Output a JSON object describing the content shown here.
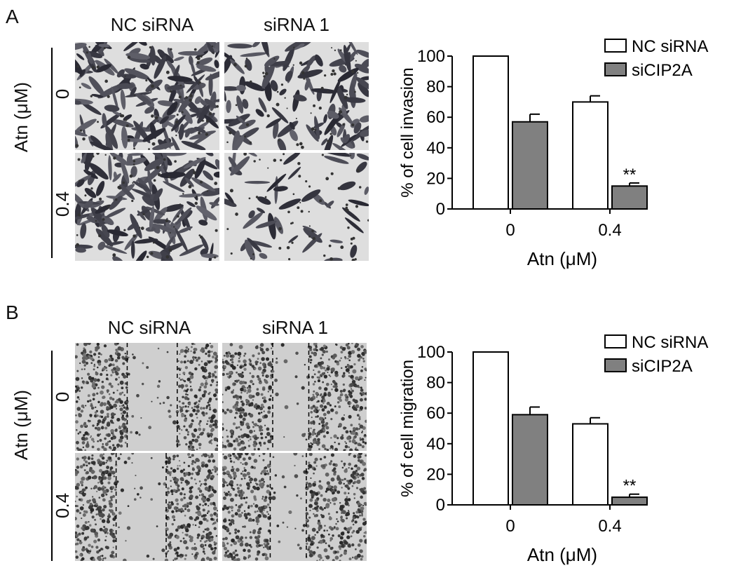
{
  "panels": [
    {
      "letter": "A",
      "column_titles": [
        "NC siRNA",
        "siRNA 1"
      ],
      "row_labels": [
        "0",
        "0.4"
      ],
      "side_label": "Atn (μM)"
    },
    {
      "letter": "B",
      "column_titles": [
        "NC siRNA",
        "siRNA 1"
      ],
      "row_labels": [
        "0",
        "0.4"
      ],
      "side_label": "Atn (μM)"
    }
  ],
  "chart_data": [
    {
      "type": "bar",
      "categories": [
        "0",
        "0.4"
      ],
      "series": [
        {
          "name": "NC siRNA",
          "values": [
            100,
            70
          ],
          "errors": [
            0,
            4
          ],
          "color": "#ffffff"
        },
        {
          "name": "siCIP2A",
          "values": [
            57,
            15
          ],
          "errors": [
            5,
            2
          ],
          "color": "#808080"
        }
      ],
      "annotations": [
        {
          "category": "0.4",
          "series": "siCIP2A",
          "text": "**"
        }
      ],
      "ylabel": "% of cell invasion",
      "xlabel": "Atn (μM)",
      "ylim": [
        0,
        100
      ],
      "yticks": [
        0,
        20,
        40,
        60,
        80,
        100
      ],
      "legend": "top-right"
    },
    {
      "type": "bar",
      "categories": [
        "0",
        "0.4"
      ],
      "series": [
        {
          "name": "NC siRNA",
          "values": [
            100,
            53
          ],
          "errors": [
            0,
            4
          ],
          "color": "#ffffff"
        },
        {
          "name": "siCIP2A",
          "values": [
            59,
            5
          ],
          "errors": [
            5,
            2
          ],
          "color": "#808080"
        }
      ],
      "annotations": [
        {
          "category": "0.4",
          "series": "siCIP2A",
          "text": "**"
        }
      ],
      "ylabel": "% of cell migration",
      "xlabel": "Atn (μM)",
      "ylim": [
        0,
        100
      ],
      "yticks": [
        0,
        20,
        40,
        60,
        80,
        100
      ],
      "legend": "top-right"
    }
  ]
}
